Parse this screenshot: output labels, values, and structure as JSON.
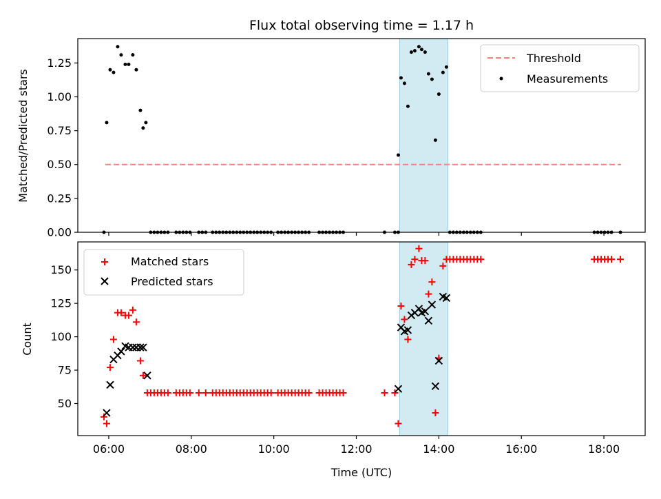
{
  "chart_data": [
    {
      "type": "scatter",
      "title": "Flux total observing time = 1.17 h",
      "ylabel": "Matched/Predicted stars",
      "xlabel": "",
      "xlim": [
        "05:15",
        "19:00"
      ],
      "ylim": [
        0,
        1.43
      ],
      "yticks": [
        "0.00",
        "0.25",
        "0.50",
        "0.75",
        "1.00",
        "1.25"
      ],
      "grid": false,
      "legend": "top-right",
      "highlight_span": {
        "start": "13:03",
        "end": "14:13",
        "color": "#add8e6"
      },
      "threshold": {
        "name": "Threshold",
        "value": 0.5,
        "x_start": "05:55",
        "x_end": "18:25",
        "color": "#ff7f7f"
      },
      "series": [
        {
          "name": "Measurements",
          "color": "#000000",
          "points": [
            {
              "x": "05:57",
              "y": 0.81
            },
            {
              "x": "06:02",
              "y": 1.2
            },
            {
              "x": "06:07",
              "y": 1.18
            },
            {
              "x": "06:13",
              "y": 1.37
            },
            {
              "x": "06:18",
              "y": 1.31
            },
            {
              "x": "06:24",
              "y": 1.24
            },
            {
              "x": "06:29",
              "y": 1.24
            },
            {
              "x": "06:35",
              "y": 1.31
            },
            {
              "x": "06:40",
              "y": 1.2
            },
            {
              "x": "06:46",
              "y": 0.9
            },
            {
              "x": "06:50",
              "y": 0.77
            },
            {
              "x": "06:54",
              "y": 0.81
            },
            {
              "x": "05:53",
              "y": 0
            },
            {
              "x": "07:01",
              "y": 0
            },
            {
              "x": "07:06",
              "y": 0
            },
            {
              "x": "07:11",
              "y": 0
            },
            {
              "x": "07:16",
              "y": 0
            },
            {
              "x": "07:21",
              "y": 0
            },
            {
              "x": "07:26",
              "y": 0
            },
            {
              "x": "07:38",
              "y": 0
            },
            {
              "x": "07:43",
              "y": 0
            },
            {
              "x": "07:48",
              "y": 0
            },
            {
              "x": "07:53",
              "y": 0
            },
            {
              "x": "07:58",
              "y": 0
            },
            {
              "x": "08:11",
              "y": 0
            },
            {
              "x": "08:16",
              "y": 0
            },
            {
              "x": "08:21",
              "y": 0
            },
            {
              "x": "08:31",
              "y": 0
            },
            {
              "x": "08:36",
              "y": 0
            },
            {
              "x": "08:41",
              "y": 0
            },
            {
              "x": "08:46",
              "y": 0
            },
            {
              "x": "08:51",
              "y": 0
            },
            {
              "x": "08:56",
              "y": 0
            },
            {
              "x": "09:01",
              "y": 0
            },
            {
              "x": "09:06",
              "y": 0
            },
            {
              "x": "09:11",
              "y": 0
            },
            {
              "x": "09:16",
              "y": 0
            },
            {
              "x": "09:21",
              "y": 0
            },
            {
              "x": "09:26",
              "y": 0
            },
            {
              "x": "09:31",
              "y": 0
            },
            {
              "x": "09:36",
              "y": 0
            },
            {
              "x": "09:41",
              "y": 0
            },
            {
              "x": "09:46",
              "y": 0
            },
            {
              "x": "09:51",
              "y": 0
            },
            {
              "x": "09:56",
              "y": 0
            },
            {
              "x": "10:06",
              "y": 0
            },
            {
              "x": "10:11",
              "y": 0
            },
            {
              "x": "10:16",
              "y": 0
            },
            {
              "x": "10:21",
              "y": 0
            },
            {
              "x": "10:26",
              "y": 0
            },
            {
              "x": "10:31",
              "y": 0
            },
            {
              "x": "10:36",
              "y": 0
            },
            {
              "x": "10:41",
              "y": 0
            },
            {
              "x": "10:46",
              "y": 0
            },
            {
              "x": "10:51",
              "y": 0
            },
            {
              "x": "11:06",
              "y": 0
            },
            {
              "x": "11:11",
              "y": 0
            },
            {
              "x": "11:16",
              "y": 0
            },
            {
              "x": "11:21",
              "y": 0
            },
            {
              "x": "11:26",
              "y": 0
            },
            {
              "x": "11:31",
              "y": 0
            },
            {
              "x": "11:36",
              "y": 0
            },
            {
              "x": "11:41",
              "y": 0
            },
            {
              "x": "12:41",
              "y": 0
            },
            {
              "x": "12:56",
              "y": 0
            },
            {
              "x": "13:01",
              "y": 0
            },
            {
              "x": "13:01",
              "y": 0.57
            },
            {
              "x": "13:05",
              "y": 1.14
            },
            {
              "x": "13:10",
              "y": 1.1
            },
            {
              "x": "13:15",
              "y": 0.93
            },
            {
              "x": "13:20",
              "y": 1.33
            },
            {
              "x": "13:25",
              "y": 1.34
            },
            {
              "x": "13:31",
              "y": 1.37
            },
            {
              "x": "13:35",
              "y": 1.35
            },
            {
              "x": "13:40",
              "y": 1.33
            },
            {
              "x": "13:45",
              "y": 1.17
            },
            {
              "x": "13:50",
              "y": 1.13
            },
            {
              "x": "13:55",
              "y": 0.68
            },
            {
              "x": "14:00",
              "y": 1.02
            },
            {
              "x": "14:06",
              "y": 1.18
            },
            {
              "x": "14:11",
              "y": 1.22
            },
            {
              "x": "14:16",
              "y": 0
            },
            {
              "x": "14:21",
              "y": 0
            },
            {
              "x": "14:26",
              "y": 0
            },
            {
              "x": "14:31",
              "y": 0
            },
            {
              "x": "14:36",
              "y": 0
            },
            {
              "x": "14:41",
              "y": 0
            },
            {
              "x": "14:46",
              "y": 0
            },
            {
              "x": "14:51",
              "y": 0
            },
            {
              "x": "14:56",
              "y": 0
            },
            {
              "x": "15:01",
              "y": 0
            },
            {
              "x": "17:46",
              "y": 0
            },
            {
              "x": "17:51",
              "y": 0
            },
            {
              "x": "17:56",
              "y": 0
            },
            {
              "x": "18:01",
              "y": 0
            },
            {
              "x": "18:06",
              "y": 0
            },
            {
              "x": "18:11",
              "y": 0
            },
            {
              "x": "18:24",
              "y": 0
            }
          ]
        }
      ]
    },
    {
      "type": "scatter",
      "title": "",
      "xlabel": "Time (UTC)",
      "ylabel": "Count",
      "xlim": [
        "05:15",
        "19:00"
      ],
      "ylim": [
        26,
        171
      ],
      "xticks": [
        "06:00",
        "08:00",
        "10:00",
        "12:00",
        "14:00",
        "16:00",
        "18:00"
      ],
      "yticks": [
        "50",
        "75",
        "100",
        "125",
        "150"
      ],
      "grid": false,
      "legend": "top-left",
      "highlight_span": {
        "start": "13:03",
        "end": "14:13",
        "color": "#add8e6"
      },
      "series": [
        {
          "name": "Matched stars",
          "marker": "+",
          "color": "#ff0000",
          "points": [
            {
              "x": "05:53",
              "y": 40
            },
            {
              "x": "05:57",
              "y": 35
            },
            {
              "x": "06:02",
              "y": 77
            },
            {
              "x": "06:07",
              "y": 98
            },
            {
              "x": "06:13",
              "y": 118
            },
            {
              "x": "06:18",
              "y": 118
            },
            {
              "x": "06:24",
              "y": 116
            },
            {
              "x": "06:29",
              "y": 116
            },
            {
              "x": "06:35",
              "y": 120
            },
            {
              "x": "06:40",
              "y": 111
            },
            {
              "x": "06:46",
              "y": 82
            },
            {
              "x": "06:50",
              "y": 71
            },
            {
              "x": "06:56",
              "y": 58
            },
            {
              "x": "07:01",
              "y": 58
            },
            {
              "x": "07:06",
              "y": 58
            },
            {
              "x": "07:11",
              "y": 58
            },
            {
              "x": "07:16",
              "y": 58
            },
            {
              "x": "07:21",
              "y": 58
            },
            {
              "x": "07:26",
              "y": 58
            },
            {
              "x": "07:38",
              "y": 58
            },
            {
              "x": "07:43",
              "y": 58
            },
            {
              "x": "07:48",
              "y": 58
            },
            {
              "x": "07:53",
              "y": 58
            },
            {
              "x": "07:58",
              "y": 58
            },
            {
              "x": "08:11",
              "y": 58
            },
            {
              "x": "08:21",
              "y": 58
            },
            {
              "x": "08:31",
              "y": 58
            },
            {
              "x": "08:36",
              "y": 58
            },
            {
              "x": "08:41",
              "y": 58
            },
            {
              "x": "08:46",
              "y": 58
            },
            {
              "x": "08:51",
              "y": 58
            },
            {
              "x": "08:56",
              "y": 58
            },
            {
              "x": "09:01",
              "y": 58
            },
            {
              "x": "09:06",
              "y": 58
            },
            {
              "x": "09:11",
              "y": 58
            },
            {
              "x": "09:16",
              "y": 58
            },
            {
              "x": "09:21",
              "y": 58
            },
            {
              "x": "09:26",
              "y": 58
            },
            {
              "x": "09:31",
              "y": 58
            },
            {
              "x": "09:36",
              "y": 58
            },
            {
              "x": "09:41",
              "y": 58
            },
            {
              "x": "09:46",
              "y": 58
            },
            {
              "x": "09:51",
              "y": 58
            },
            {
              "x": "09:56",
              "y": 58
            },
            {
              "x": "10:06",
              "y": 58
            },
            {
              "x": "10:11",
              "y": 58
            },
            {
              "x": "10:16",
              "y": 58
            },
            {
              "x": "10:21",
              "y": 58
            },
            {
              "x": "10:26",
              "y": 58
            },
            {
              "x": "10:31",
              "y": 58
            },
            {
              "x": "10:36",
              "y": 58
            },
            {
              "x": "10:41",
              "y": 58
            },
            {
              "x": "10:46",
              "y": 58
            },
            {
              "x": "10:51",
              "y": 58
            },
            {
              "x": "11:06",
              "y": 58
            },
            {
              "x": "11:11",
              "y": 58
            },
            {
              "x": "11:16",
              "y": 58
            },
            {
              "x": "11:21",
              "y": 58
            },
            {
              "x": "11:26",
              "y": 58
            },
            {
              "x": "11:31",
              "y": 58
            },
            {
              "x": "11:36",
              "y": 58
            },
            {
              "x": "11:41",
              "y": 58
            },
            {
              "x": "12:41",
              "y": 58
            },
            {
              "x": "12:56",
              "y": 58
            },
            {
              "x": "13:01",
              "y": 35
            },
            {
              "x": "13:05",
              "y": 123
            },
            {
              "x": "13:10",
              "y": 113
            },
            {
              "x": "13:15",
              "y": 98
            },
            {
              "x": "13:20",
              "y": 154
            },
            {
              "x": "13:25",
              "y": 158
            },
            {
              "x": "13:31",
              "y": 166
            },
            {
              "x": "13:35",
              "y": 157
            },
            {
              "x": "13:40",
              "y": 157
            },
            {
              "x": "13:45",
              "y": 132
            },
            {
              "x": "13:50",
              "y": 141
            },
            {
              "x": "13:55",
              "y": 43
            },
            {
              "x": "14:00",
              "y": 84
            },
            {
              "x": "14:06",
              "y": 153
            },
            {
              "x": "14:11",
              "y": 158
            },
            {
              "x": "14:16",
              "y": 158
            },
            {
              "x": "14:21",
              "y": 158
            },
            {
              "x": "14:26",
              "y": 158
            },
            {
              "x": "14:31",
              "y": 158
            },
            {
              "x": "14:36",
              "y": 158
            },
            {
              "x": "14:41",
              "y": 158
            },
            {
              "x": "14:46",
              "y": 158
            },
            {
              "x": "14:51",
              "y": 158
            },
            {
              "x": "14:56",
              "y": 158
            },
            {
              "x": "15:01",
              "y": 158
            },
            {
              "x": "17:46",
              "y": 158
            },
            {
              "x": "17:51",
              "y": 158
            },
            {
              "x": "17:56",
              "y": 158
            },
            {
              "x": "18:01",
              "y": 158
            },
            {
              "x": "18:06",
              "y": 158
            },
            {
              "x": "18:11",
              "y": 158
            },
            {
              "x": "18:24",
              "y": 158
            }
          ]
        },
        {
          "name": "Predicted stars",
          "marker": "x",
          "color": "#000000",
          "points": [
            {
              "x": "05:57",
              "y": 43
            },
            {
              "x": "06:02",
              "y": 64
            },
            {
              "x": "06:07",
              "y": 83
            },
            {
              "x": "06:13",
              "y": 86
            },
            {
              "x": "06:18",
              "y": 89
            },
            {
              "x": "06:24",
              "y": 93
            },
            {
              "x": "06:29",
              "y": 92
            },
            {
              "x": "06:35",
              "y": 92
            },
            {
              "x": "06:40",
              "y": 92
            },
            {
              "x": "06:46",
              "y": 92
            },
            {
              "x": "06:50",
              "y": 92
            },
            {
              "x": "06:56",
              "y": 71
            },
            {
              "x": "13:01",
              "y": 61
            },
            {
              "x": "13:05",
              "y": 107
            },
            {
              "x": "13:10",
              "y": 104
            },
            {
              "x": "13:15",
              "y": 105
            },
            {
              "x": "13:20",
              "y": 116
            },
            {
              "x": "13:25",
              "y": 118
            },
            {
              "x": "13:31",
              "y": 121
            },
            {
              "x": "13:35",
              "y": 118
            },
            {
              "x": "13:40",
              "y": 119
            },
            {
              "x": "13:45",
              "y": 112
            },
            {
              "x": "13:50",
              "y": 124
            },
            {
              "x": "13:55",
              "y": 63
            },
            {
              "x": "14:00",
              "y": 82
            },
            {
              "x": "14:06",
              "y": 130
            },
            {
              "x": "14:11",
              "y": 129
            }
          ]
        }
      ]
    }
  ]
}
